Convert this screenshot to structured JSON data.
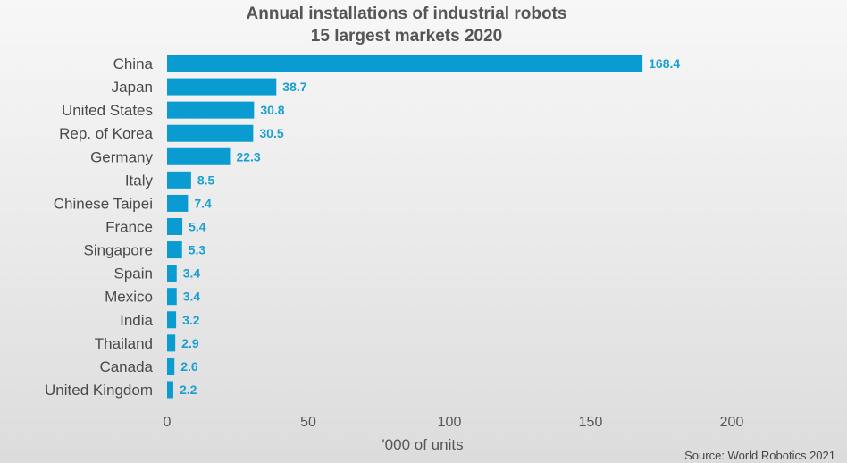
{
  "chart_data": {
    "type": "bar",
    "orientation": "horizontal",
    "title": "Annual installations of industrial robots",
    "subtitle": "15 largest markets 2020",
    "categories": [
      "China",
      "Japan",
      "United States",
      "Rep. of Korea",
      "Germany",
      "Italy",
      "Chinese Taipei",
      "France",
      "Singapore",
      "Spain",
      "Mexico",
      "India",
      "Thailand",
      "Canada",
      "United Kingdom"
    ],
    "values": [
      168.4,
      38.7,
      30.8,
      30.5,
      22.3,
      8.5,
      7.4,
      5.4,
      5.3,
      3.4,
      3.4,
      3.2,
      2.9,
      2.6,
      2.2
    ],
    "value_labels": [
      "168.4",
      "38.7",
      "30.8",
      "30.5",
      "22.3",
      "8.5",
      "7.4",
      "5.4",
      "5.3",
      "3.4",
      "3.4",
      "3.2",
      "2.9",
      "2.6",
      "2.2"
    ],
    "xlabel": "'000 of units",
    "xlim": [
      0,
      200
    ],
    "xticks": [
      "0",
      "50",
      "100",
      "150",
      "200"
    ],
    "grid": false,
    "bar_color": "#0a9cd0",
    "label_color": "#1a9fd3",
    "source": "Source: World Robotics 2021"
  }
}
